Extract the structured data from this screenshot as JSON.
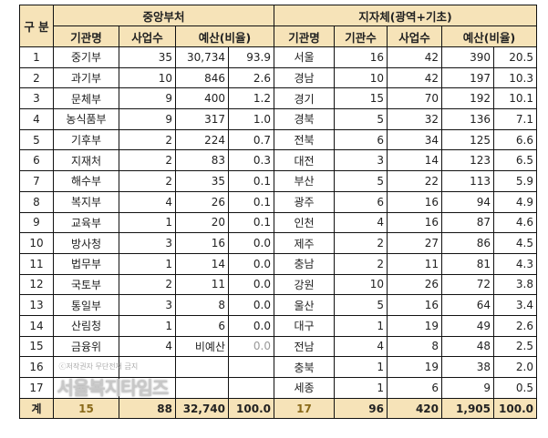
{
  "header": {
    "category": "구 분",
    "central": "중앙부처",
    "local": "지자체(광역+기초)",
    "central_cols": [
      "기관명",
      "사업수",
      "예산(비율)"
    ],
    "local_cols": [
      "기관명",
      "기관수",
      "사업수",
      "예산(비율)"
    ]
  },
  "rows": [
    {
      "no": "1",
      "c_name": "중기부",
      "c_proj": "35",
      "c_budget": "30,734",
      "c_ratio": "93.9",
      "l_name": "서울",
      "l_orgs": "16",
      "l_proj": "42",
      "l_budget": "390",
      "l_ratio": "20.5"
    },
    {
      "no": "2",
      "c_name": "과기부",
      "c_proj": "10",
      "c_budget": "846",
      "c_ratio": "2.6",
      "l_name": "경남",
      "l_orgs": "10",
      "l_proj": "42",
      "l_budget": "197",
      "l_ratio": "10.3"
    },
    {
      "no": "3",
      "c_name": "문체부",
      "c_proj": "9",
      "c_budget": "400",
      "c_ratio": "1.2",
      "l_name": "경기",
      "l_orgs": "15",
      "l_proj": "70",
      "l_budget": "192",
      "l_ratio": "10.1"
    },
    {
      "no": "4",
      "c_name": "농식품부",
      "c_proj": "9",
      "c_budget": "317",
      "c_ratio": "1.0",
      "l_name": "경북",
      "l_orgs": "5",
      "l_proj": "32",
      "l_budget": "136",
      "l_ratio": "7.1"
    },
    {
      "no": "5",
      "c_name": "기후부",
      "c_proj": "2",
      "c_budget": "224",
      "c_ratio": "0.7",
      "l_name": "전북",
      "l_orgs": "6",
      "l_proj": "34",
      "l_budget": "125",
      "l_ratio": "6.6"
    },
    {
      "no": "6",
      "c_name": "지재처",
      "c_proj": "2",
      "c_budget": "83",
      "c_ratio": "0.3",
      "l_name": "대전",
      "l_orgs": "3",
      "l_proj": "14",
      "l_budget": "123",
      "l_ratio": "6.5"
    },
    {
      "no": "7",
      "c_name": "해수부",
      "c_proj": "2",
      "c_budget": "35",
      "c_ratio": "0.1",
      "l_name": "부산",
      "l_orgs": "5",
      "l_proj": "22",
      "l_budget": "113",
      "l_ratio": "5.9"
    },
    {
      "no": "8",
      "c_name": "복지부",
      "c_proj": "4",
      "c_budget": "26",
      "c_ratio": "0.1",
      "l_name": "광주",
      "l_orgs": "6",
      "l_proj": "16",
      "l_budget": "94",
      "l_ratio": "4.9"
    },
    {
      "no": "9",
      "c_name": "교육부",
      "c_proj": "1",
      "c_budget": "20",
      "c_ratio": "0.1",
      "l_name": "인천",
      "l_orgs": "4",
      "l_proj": "16",
      "l_budget": "87",
      "l_ratio": "4.6"
    },
    {
      "no": "10",
      "c_name": "방사청",
      "c_proj": "3",
      "c_budget": "16",
      "c_ratio": "0.0",
      "l_name": "제주",
      "l_orgs": "2",
      "l_proj": "27",
      "l_budget": "86",
      "l_ratio": "4.5"
    },
    {
      "no": "11",
      "c_name": "법무부",
      "c_proj": "1",
      "c_budget": "14",
      "c_ratio": "0.0",
      "l_name": "충남",
      "l_orgs": "2",
      "l_proj": "11",
      "l_budget": "81",
      "l_ratio": "4.3"
    },
    {
      "no": "12",
      "c_name": "국토부",
      "c_proj": "2",
      "c_budget": "11",
      "c_ratio": "0.0",
      "l_name": "강원",
      "l_orgs": "10",
      "l_proj": "26",
      "l_budget": "72",
      "l_ratio": "3.8"
    },
    {
      "no": "13",
      "c_name": "통일부",
      "c_proj": "3",
      "c_budget": "8",
      "c_ratio": "0.0",
      "l_name": "울산",
      "l_orgs": "5",
      "l_proj": "16",
      "l_budget": "64",
      "l_ratio": "3.4"
    },
    {
      "no": "14",
      "c_name": "산림청",
      "c_proj": "1",
      "c_budget": "6",
      "c_ratio": "0.0",
      "l_name": "대구",
      "l_orgs": "1",
      "l_proj": "19",
      "l_budget": "49",
      "l_ratio": "2.6"
    },
    {
      "no": "15",
      "c_name": "금융위",
      "c_proj": "4",
      "c_budget": "비예산",
      "c_ratio": "0.0",
      "l_name": "전남",
      "l_orgs": "4",
      "l_proj": "8",
      "l_budget": "48",
      "l_ratio": "2.5"
    },
    {
      "no": "16",
      "c_name": "",
      "c_proj": "",
      "c_budget": "",
      "c_ratio": "",
      "l_name": "충북",
      "l_orgs": "1",
      "l_proj": "19",
      "l_budget": "38",
      "l_ratio": "2.0"
    },
    {
      "no": "17",
      "c_name": "",
      "c_proj": "",
      "c_budget": "",
      "c_ratio": "",
      "l_name": "세종",
      "l_orgs": "1",
      "l_proj": "6",
      "l_budget": "9",
      "l_ratio": "0.5"
    }
  ],
  "total": {
    "label": "계",
    "c_name": "15",
    "c_proj": "88",
    "c_budget": "32,740",
    "c_ratio": "100.0",
    "l_name": "17",
    "l_orgs": "96",
    "l_proj": "420",
    "l_budget": "1,905",
    "l_ratio": "100.0"
  },
  "watermark": {
    "text": "서울복지타임즈",
    "small": "ⓒ저작권자 무단전재 금지"
  }
}
